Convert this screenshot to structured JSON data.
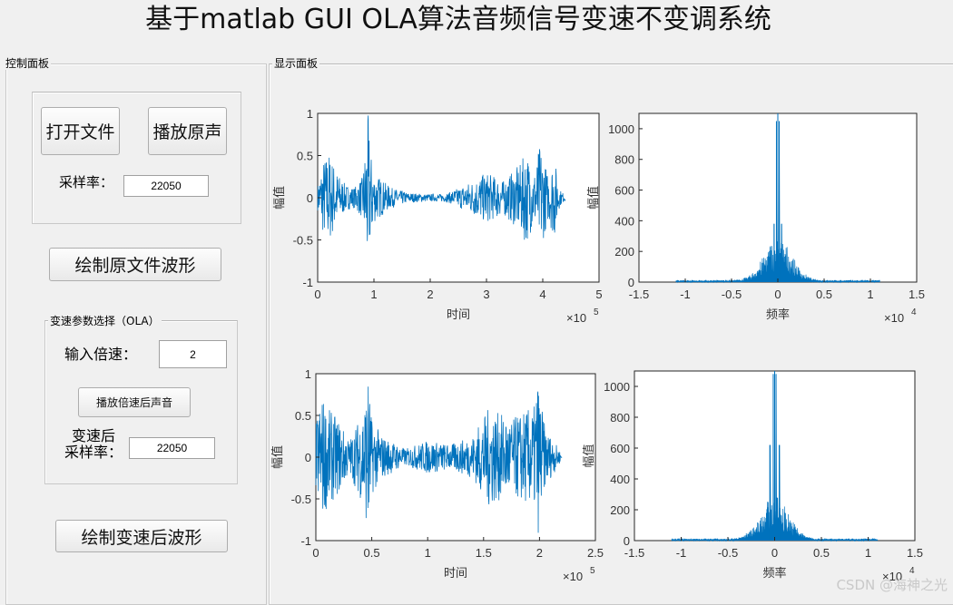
{
  "window": {
    "title": "基于matlab GUI OLA算法音频信号变速不变调系统"
  },
  "control_panel": {
    "title": "控制面板",
    "open_file_label": "打开文件",
    "play_original_label": "播放原声",
    "sample_rate_label": "采样率：",
    "sample_rate_value": "22050",
    "draw_original_label": "绘制原文件波形",
    "ola_group": {
      "title": "变速参数选择（OLA）",
      "speed_label": "输入倍速：",
      "speed_value": "2",
      "play_speed_label": "播放倍速后声音",
      "new_rate_label_line1": "变速后",
      "new_rate_label_line2": "采样率：",
      "new_rate_value": "22050"
    },
    "draw_changed_label": "绘制变速后波形"
  },
  "display_panel": {
    "title": "显示面板"
  },
  "axes": {
    "wave1": {
      "ylabel": "幅值",
      "xlabel": "时间",
      "exp": "×10",
      "exp_power": "5",
      "xticks": [
        "0",
        "1",
        "2",
        "3",
        "4",
        "5"
      ],
      "yticks": [
        "1",
        "0.5",
        "0",
        "-0.5",
        "-1"
      ]
    },
    "spec1": {
      "ylabel": "幅值",
      "xlabel": "频率",
      "exp": "×10",
      "exp_power": "4",
      "xticks": [
        "-1.5",
        "-1",
        "-0.5",
        "0",
        "0.5",
        "1",
        "1.5"
      ],
      "yticks": [
        "1000",
        "800",
        "600",
        "400",
        "200",
        "0"
      ]
    },
    "wave2": {
      "ylabel": "幅值",
      "xlabel": "时间",
      "exp": "×10",
      "exp_power": "5",
      "xticks": [
        "0",
        "0.5",
        "1",
        "1.5",
        "2",
        "2.5"
      ],
      "yticks": [
        "1",
        "0.5",
        "0",
        "-0.5",
        "-1"
      ]
    },
    "spec2": {
      "ylabel": "幅值",
      "xlabel": "频率",
      "exp": "×10",
      "exp_power": "4",
      "xticks": [
        "-1.5",
        "-1",
        "-0.5",
        "0",
        "0.5",
        "1",
        "1.5"
      ],
      "yticks": [
        "1000",
        "800",
        "600",
        "400",
        "200",
        "0"
      ]
    }
  },
  "chart_data": [
    {
      "type": "line",
      "title": "",
      "xlabel": "时间",
      "ylabel": "幅值",
      "xlim": [
        0,
        500000
      ],
      "ylim": [
        -1,
        1
      ],
      "color": "#0072bd",
      "envelope": {
        "x": [
          0,
          10000,
          20000,
          35000,
          50000,
          65000,
          80000,
          87000,
          90000,
          93000,
          100000,
          130000,
          160000,
          200000,
          230000,
          260000,
          280000,
          300000,
          330000,
          360000,
          370000,
          385000,
          395000,
          410000,
          420000,
          430000,
          440000
        ],
        "amp": [
          0.15,
          0.45,
          0.55,
          0.3,
          0.15,
          0.12,
          0.25,
          0.75,
          1.0,
          0.6,
          0.3,
          0.12,
          0.06,
          0.04,
          0.05,
          0.15,
          0.22,
          0.3,
          0.2,
          0.4,
          0.55,
          0.3,
          0.65,
          0.25,
          0.5,
          0.1,
          0.03
        ]
      }
    },
    {
      "type": "line",
      "title": "",
      "xlabel": "频率",
      "ylabel": "幅值",
      "xlim": [
        -15000,
        15000
      ],
      "ylim": [
        0,
        1100
      ],
      "color": "#0072bd",
      "peaks": [
        {
          "x": 0,
          "y": 1100
        },
        {
          "x": -150,
          "y": 1050
        },
        {
          "x": 150,
          "y": 1050
        },
        {
          "x": -400,
          "y": 380
        },
        {
          "x": 400,
          "y": 380
        }
      ],
      "spread": 3000
    },
    {
      "type": "line",
      "title": "",
      "xlabel": "时间",
      "ylabel": "幅值",
      "xlim": [
        0,
        250000
      ],
      "ylim": [
        -1,
        1
      ],
      "color": "#0072bd",
      "envelope": {
        "x": [
          0,
          5000,
          10000,
          20000,
          30000,
          40000,
          45000,
          47000,
          50000,
          60000,
          80000,
          100000,
          120000,
          140000,
          155000,
          160000,
          175000,
          185000,
          195000,
          198000,
          205000,
          215000,
          220000
        ],
        "amp": [
          0.4,
          0.75,
          0.6,
          0.45,
          0.2,
          0.5,
          0.8,
          1.0,
          0.45,
          0.25,
          0.1,
          0.2,
          0.15,
          0.25,
          0.6,
          0.55,
          0.45,
          0.55,
          0.6,
          1.0,
          0.35,
          0.15,
          0.03
        ]
      }
    },
    {
      "type": "line",
      "title": "",
      "xlabel": "频率",
      "ylabel": "幅值",
      "xlim": [
        -15000,
        15000
      ],
      "ylim": [
        0,
        1100
      ],
      "color": "#0072bd",
      "peaks": [
        {
          "x": 0,
          "y": 1100
        },
        {
          "x": -150,
          "y": 1080
        },
        {
          "x": 150,
          "y": 1080
        },
        {
          "x": -500,
          "y": 620
        },
        {
          "x": 500,
          "y": 620
        }
      ],
      "spread": 3000
    }
  ],
  "watermark": "CSDN @海神之光",
  "colors": {
    "plot": "#0072bd",
    "background": "#f0f0f0"
  }
}
